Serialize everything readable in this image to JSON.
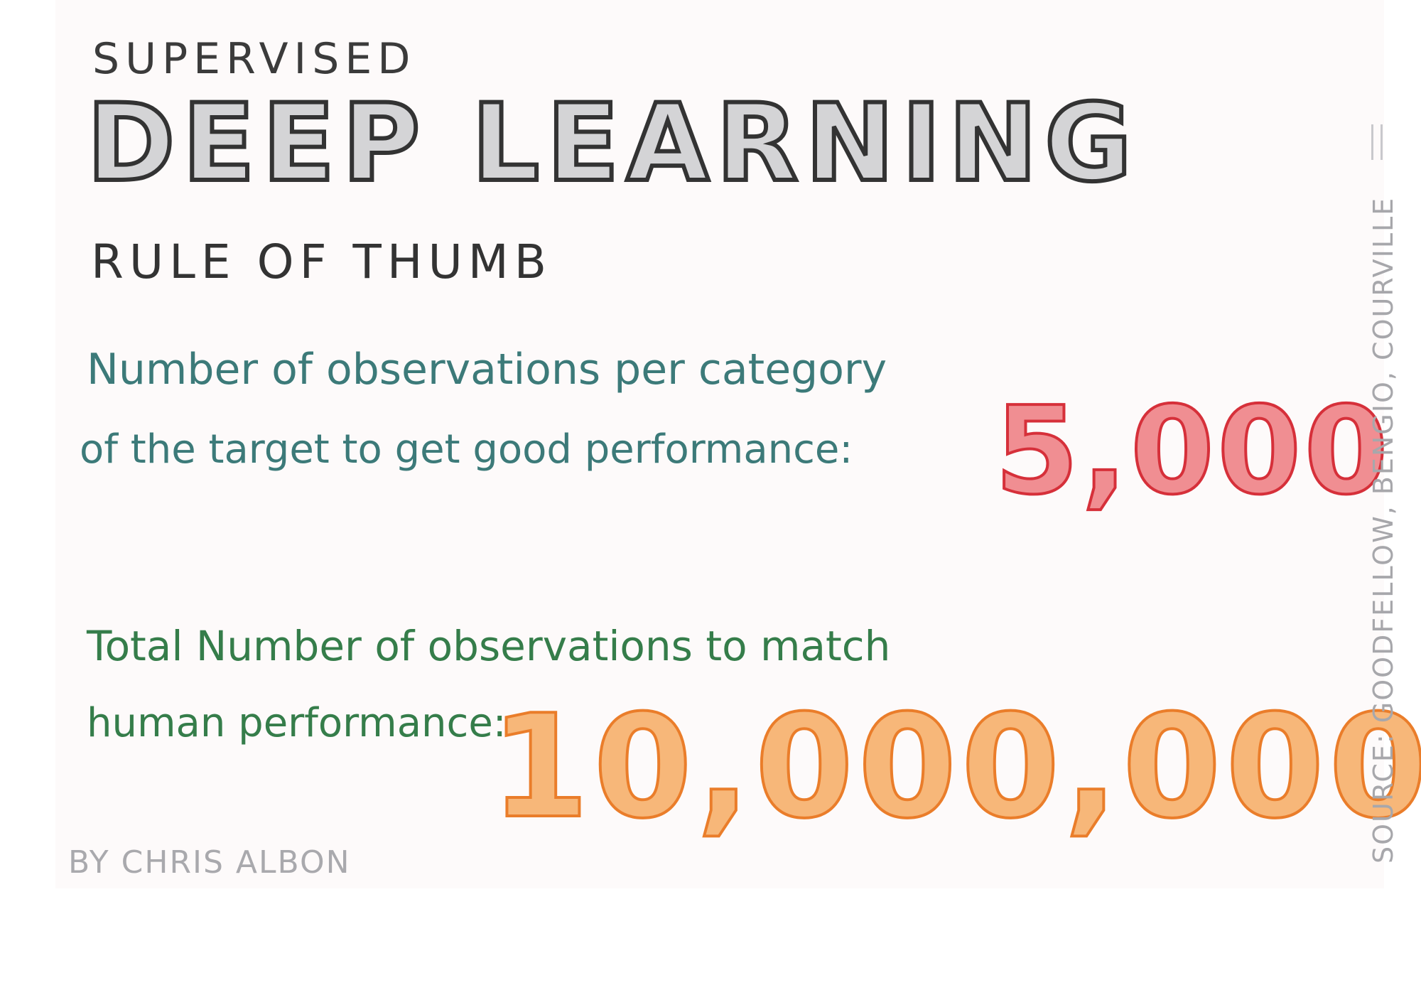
{
  "header": {
    "supertitle": "SUPERVISED",
    "title": "DEEP LEARNING",
    "subtitle": "RULE OF THUMB"
  },
  "per_category": {
    "line1": "Number of observations per category",
    "line2": "of the target to get good performance:",
    "value": "5,000"
  },
  "human_level": {
    "line1": "Total Number of observations to match",
    "line2": "human performance:",
    "value": "10,000,000"
  },
  "byline": "BY CHRIS ALBON",
  "source": "SOURCE: GOODFELLOW, BENGIO, COURVILLE",
  "colors": {
    "teal_text": "#3c7a79",
    "green_text": "#357d4a",
    "red_number": "#d6303a",
    "orange_number": "#ea7d2a",
    "gray_title": "#d4d4d6"
  }
}
